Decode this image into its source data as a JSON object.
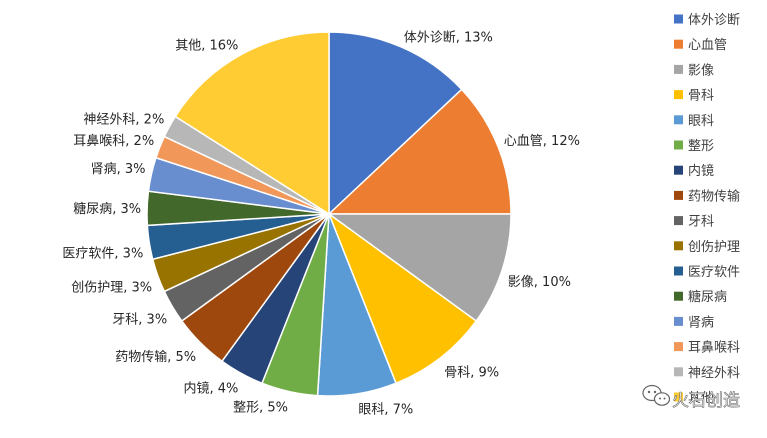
{
  "chart_data": {
    "type": "pie",
    "title": "",
    "slices": [
      {
        "label": "体外诊断",
        "value": 13,
        "display": "体外诊断, 13%",
        "color": "#4472C4"
      },
      {
        "label": "心血管",
        "value": 12,
        "display": "心血管, 12%",
        "color": "#ED7D31"
      },
      {
        "label": "影像",
        "value": 10,
        "display": "影像, 10%",
        "color": "#A5A5A5"
      },
      {
        "label": "骨科",
        "value": 9,
        "display": "骨科, 9%",
        "color": "#FFC000"
      },
      {
        "label": "眼科",
        "value": 7,
        "display": "眼科, 7%",
        "color": "#5B9BD5"
      },
      {
        "label": "整形",
        "value": 5,
        "display": "整形, 5%",
        "color": "#70AD47"
      },
      {
        "label": "内镜",
        "value": 4,
        "display": "内镜, 4%",
        "color": "#264478"
      },
      {
        "label": "药物传输",
        "value": 5,
        "display": "药物传输, 5%",
        "color": "#9E480E"
      },
      {
        "label": "牙科",
        "value": 3,
        "display": "牙科, 3%",
        "color": "#636363"
      },
      {
        "label": "创伤护理",
        "value": 3,
        "display": "创伤护理, 3%",
        "color": "#997300"
      },
      {
        "label": "医疗软件",
        "value": 3,
        "display": "医疗软件, 3%",
        "color": "#255E91"
      },
      {
        "label": "糖尿病",
        "value": 3,
        "display": "糖尿病, 3%",
        "color": "#43682B"
      },
      {
        "label": "肾病",
        "value": 3,
        "display": "肾病, 3%",
        "color": "#698ED0"
      },
      {
        "label": "耳鼻喉科",
        "value": 2,
        "display": "耳鼻喉科, 2%",
        "color": "#F1975A"
      },
      {
        "label": "神经外科",
        "value": 2,
        "display": "神经外科, 2%",
        "color": "#B7B7B7"
      },
      {
        "label": "其他",
        "value": 16,
        "display": "其他, 16%",
        "color": "#FFCD33"
      }
    ],
    "legend_position": "right",
    "start_angle": "12 o'clock",
    "direction": "clockwise"
  },
  "watermark": {
    "text": "火石创造",
    "icon": "wechat-icon"
  }
}
